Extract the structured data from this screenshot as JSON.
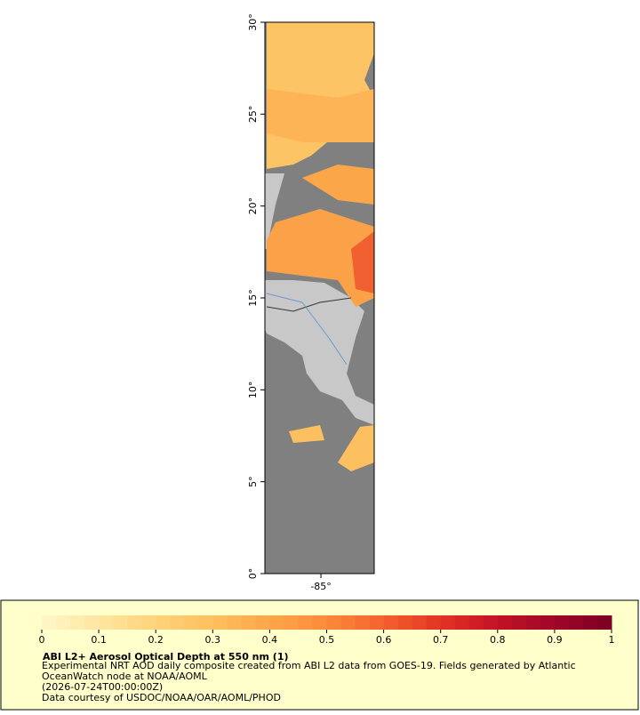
{
  "chart_data": {
    "type": "map",
    "title": "ABI L2+ Aerosol Optical Depth at 550 nm (1)",
    "description": "Experimental NRT AOD daily composite created from ABI L2 data from GOES-19. Fields generated by Atlantic OceanWatch node at NOAA/AOML",
    "date": "(2026-07-24T00:00:00Z)",
    "credit": "Data courtesy of USDOC/NOAA/OAR/AOML/PHOD",
    "xlim": [
      -88.05,
      -82.1
    ],
    "ylim": [
      0,
      30
    ],
    "xticks": [
      {
        "value": -85,
        "label": "-85°"
      }
    ],
    "yticks": [
      {
        "value": 0,
        "label": "0°"
      },
      {
        "value": 5,
        "label": "5°"
      },
      {
        "value": 10,
        "label": "10°"
      },
      {
        "value": 15,
        "label": "15°"
      },
      {
        "value": 20,
        "label": "20°"
      },
      {
        "value": 25,
        "label": "25°"
      },
      {
        "value": 30,
        "label": "30°"
      }
    ],
    "colorbar_lim": [
      0,
      1
    ],
    "colorbar_ticks": [
      0,
      0.1,
      0.2,
      0.3,
      0.4,
      0.5,
      0.6,
      0.7,
      0.8,
      0.9,
      1
    ],
    "colormap": [
      "#fff7c8",
      "#ffe6a0",
      "#fed37a",
      "#fdc05e",
      "#fca64a",
      "#fb8a3a",
      "#f4622e",
      "#e23424",
      "#c31226",
      "#9e0628",
      "#7d0025"
    ]
  }
}
